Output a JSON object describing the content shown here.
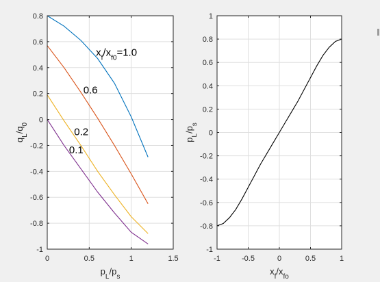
{
  "figure": {
    "background": "#f0f0f0",
    "axes_background": "#ffffff",
    "grid_color": "#dfdfdf",
    "axis_color": "#262626"
  },
  "chart_data": [
    {
      "type": "line",
      "title": "",
      "xlim": [
        0,
        1.5
      ],
      "ylim": [
        -1,
        0.8
      ],
      "xticks": [
        0,
        0.5,
        1,
        1.5
      ],
      "xtick_labels": [
        "0",
        "0.5",
        "1",
        "1.5"
      ],
      "yticks": [
        -1,
        -0.8,
        -0.6,
        -0.4,
        -0.2,
        0,
        0.2,
        0.4,
        0.6,
        0.8
      ],
      "ytick_labels": [
        "-1",
        "-0.8",
        "-0.6",
        "-0.4",
        "-0.2",
        "0",
        "0.2",
        "0.4",
        "0.6",
        "0.8"
      ],
      "xlabel": {
        "main": "p",
        "sub": "L",
        "rest": "/p",
        "sub2": "s"
      },
      "ylabel": {
        "main": "q",
        "sub": "L",
        "rest": "/q",
        "sub2": "0"
      },
      "grid": true,
      "series": [
        {
          "color": "#0072bd",
          "x": [
            0,
            0.2,
            0.4,
            0.6,
            0.8,
            1.0,
            1.2
          ],
          "y": [
            0.8,
            0.72,
            0.61,
            0.47,
            0.28,
            0.02,
            -0.29
          ]
        },
        {
          "color": "#d95319",
          "x": [
            0,
            0.2,
            0.4,
            0.6,
            0.8,
            1.0,
            1.2
          ],
          "y": [
            0.57,
            0.4,
            0.21,
            0.01,
            -0.2,
            -0.42,
            -0.65
          ]
        },
        {
          "color": "#edb120",
          "x": [
            0,
            0.2,
            0.4,
            0.6,
            0.8,
            1.0,
            1.2
          ],
          "y": [
            0.19,
            -0.01,
            -0.2,
            -0.4,
            -0.58,
            -0.75,
            -0.88
          ]
        },
        {
          "color": "#7e2f8e",
          "x": [
            0,
            0.2,
            0.4,
            0.6,
            0.8,
            1.0,
            1.2
          ],
          "y": [
            0,
            -0.2,
            -0.38,
            -0.56,
            -0.72,
            -0.87,
            -0.96
          ]
        }
      ],
      "annotations": [
        {
          "text_main": "x",
          "text_sub": "f",
          "text_rest": "/x",
          "text_sub2": "f0",
          "text_tail": "=1.0",
          "x": 0.58,
          "y": 0.49
        },
        {
          "text": "0.6",
          "x": 0.43,
          "y": 0.2
        },
        {
          "text": "0.2",
          "x": 0.32,
          "y": -0.12
        },
        {
          "text": "0.1",
          "x": 0.26,
          "y": -0.26
        }
      ]
    },
    {
      "type": "line",
      "title": "",
      "xlim": [
        -1,
        1
      ],
      "ylim": [
        -1,
        1
      ],
      "xticks": [
        -1,
        -0.5,
        0,
        0.5,
        1
      ],
      "xtick_labels": [
        "-1",
        "-0.5",
        "0",
        "0.5",
        "1"
      ],
      "yticks": [
        -1,
        -0.8,
        -0.6,
        -0.4,
        -0.2,
        0,
        0.2,
        0.4,
        0.6,
        0.8,
        1
      ],
      "ytick_labels": [
        "-1",
        "-0.8",
        "-0.6",
        "-0.4",
        "-0.2",
        "0",
        "0.2",
        "0.4",
        "0.6",
        "0.8",
        "1"
      ],
      "xlabel": {
        "main": "x",
        "sub": "f",
        "rest": "/x",
        "sub2": "fo"
      },
      "ylabel": {
        "main": "p",
        "sub": "L",
        "rest": "/p",
        "sub2": "s"
      },
      "grid": true,
      "series": [
        {
          "color": "#000000",
          "x": [
            -1,
            -0.9,
            -0.8,
            -0.7,
            -0.6,
            -0.5,
            -0.4,
            -0.3,
            -0.2,
            -0.1,
            0,
            0.1,
            0.2,
            0.3,
            0.4,
            0.5,
            0.6,
            0.7,
            0.8,
            0.9,
            1.0
          ],
          "y": [
            -0.8,
            -0.78,
            -0.73,
            -0.66,
            -0.57,
            -0.47,
            -0.37,
            -0.27,
            -0.18,
            -0.09,
            0,
            0.09,
            0.18,
            0.27,
            0.37,
            0.47,
            0.57,
            0.66,
            0.73,
            0.78,
            0.8
          ]
        }
      ]
    }
  ]
}
